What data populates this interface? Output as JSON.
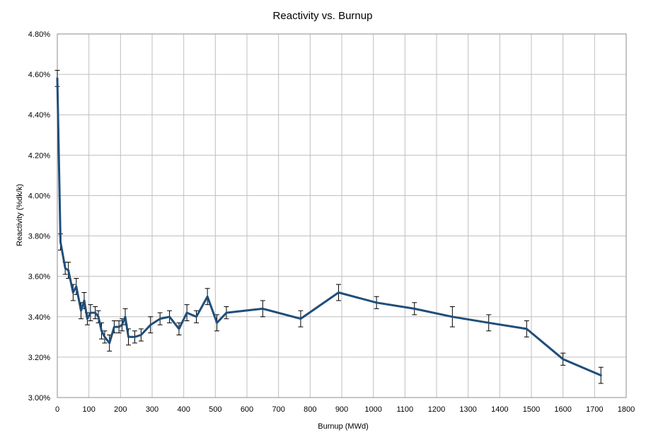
{
  "chart_data": {
    "type": "line",
    "title": "Reactivity vs. Burnup",
    "xlabel": "Burnup (MWd)",
    "ylabel": "Reactivity (%dk/k)",
    "xlim": [
      0,
      1800
    ],
    "ylim": [
      3.0,
      4.8
    ],
    "x_ticks": [
      "0",
      "100",
      "200",
      "300",
      "400",
      "500",
      "600",
      "700",
      "800",
      "900",
      "1000",
      "1100",
      "1200",
      "1300",
      "1400",
      "1500",
      "1600",
      "1700",
      "1800"
    ],
    "y_ticks": [
      "3.00%",
      "3.20%",
      "3.40%",
      "3.60%",
      "3.80%",
      "4.00%",
      "4.20%",
      "4.40%",
      "4.60%",
      "4.80%"
    ],
    "grid": true,
    "legend": "none",
    "color": "#1f4e79",
    "series": [
      {
        "x": [
          0,
          10,
          25,
          35,
          50,
          60,
          75,
          85,
          95,
          105,
          120,
          130,
          140,
          150,
          165,
          180,
          195,
          205,
          215,
          225,
          245,
          265,
          295,
          325,
          355,
          385,
          410,
          440,
          475,
          505,
          535,
          650,
          770,
          890,
          1010,
          1130,
          1250,
          1365,
          1485,
          1600,
          1720
        ],
        "y": [
          4.58,
          3.77,
          3.64,
          3.63,
          3.52,
          3.55,
          3.43,
          3.48,
          3.39,
          3.42,
          3.42,
          3.4,
          3.33,
          3.3,
          3.27,
          3.35,
          3.35,
          3.36,
          3.4,
          3.3,
          3.3,
          3.31,
          3.36,
          3.39,
          3.4,
          3.34,
          3.42,
          3.4,
          3.5,
          3.37,
          3.42,
          3.44,
          3.39,
          3.52,
          3.47,
          3.44,
          3.4,
          3.37,
          3.34,
          3.19,
          3.11
        ],
        "err": [
          0.04,
          0.04,
          0.03,
          0.04,
          0.04,
          0.04,
          0.04,
          0.04,
          0.03,
          0.04,
          0.03,
          0.03,
          0.04,
          0.03,
          0.04,
          0.03,
          0.03,
          0.03,
          0.04,
          0.04,
          0.03,
          0.03,
          0.04,
          0.03,
          0.03,
          0.03,
          0.04,
          0.03,
          0.04,
          0.04,
          0.03,
          0.04,
          0.04,
          0.04,
          0.03,
          0.03,
          0.05,
          0.04,
          0.04,
          0.03,
          0.04
        ]
      }
    ]
  }
}
